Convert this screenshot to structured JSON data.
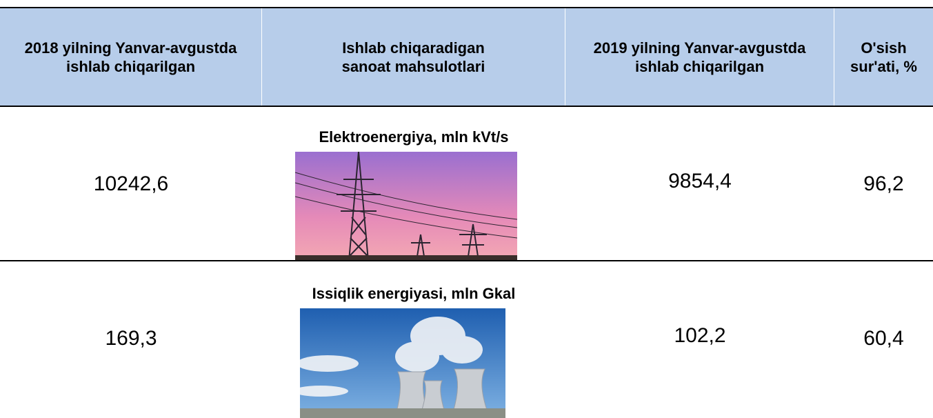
{
  "table": {
    "header": [
      "2018 yilning Yanvar-avgustda ishlab chiqarilgan",
      "Ishlab chiqaradigan sanoat mahsulotlari",
      "2019 yilning Yanvar-avgustda ishlab chiqarilgan",
      "O'sish sur'ati, %"
    ],
    "rows": [
      [
        "10242,6",
        "Elektroenergiya, mln kVt/s",
        "9854,4",
        "96,2"
      ],
      [
        "169,3",
        "Issiqlik energiyasi, mln Gkal",
        "102,2",
        "60,4"
      ]
    ]
  }
}
